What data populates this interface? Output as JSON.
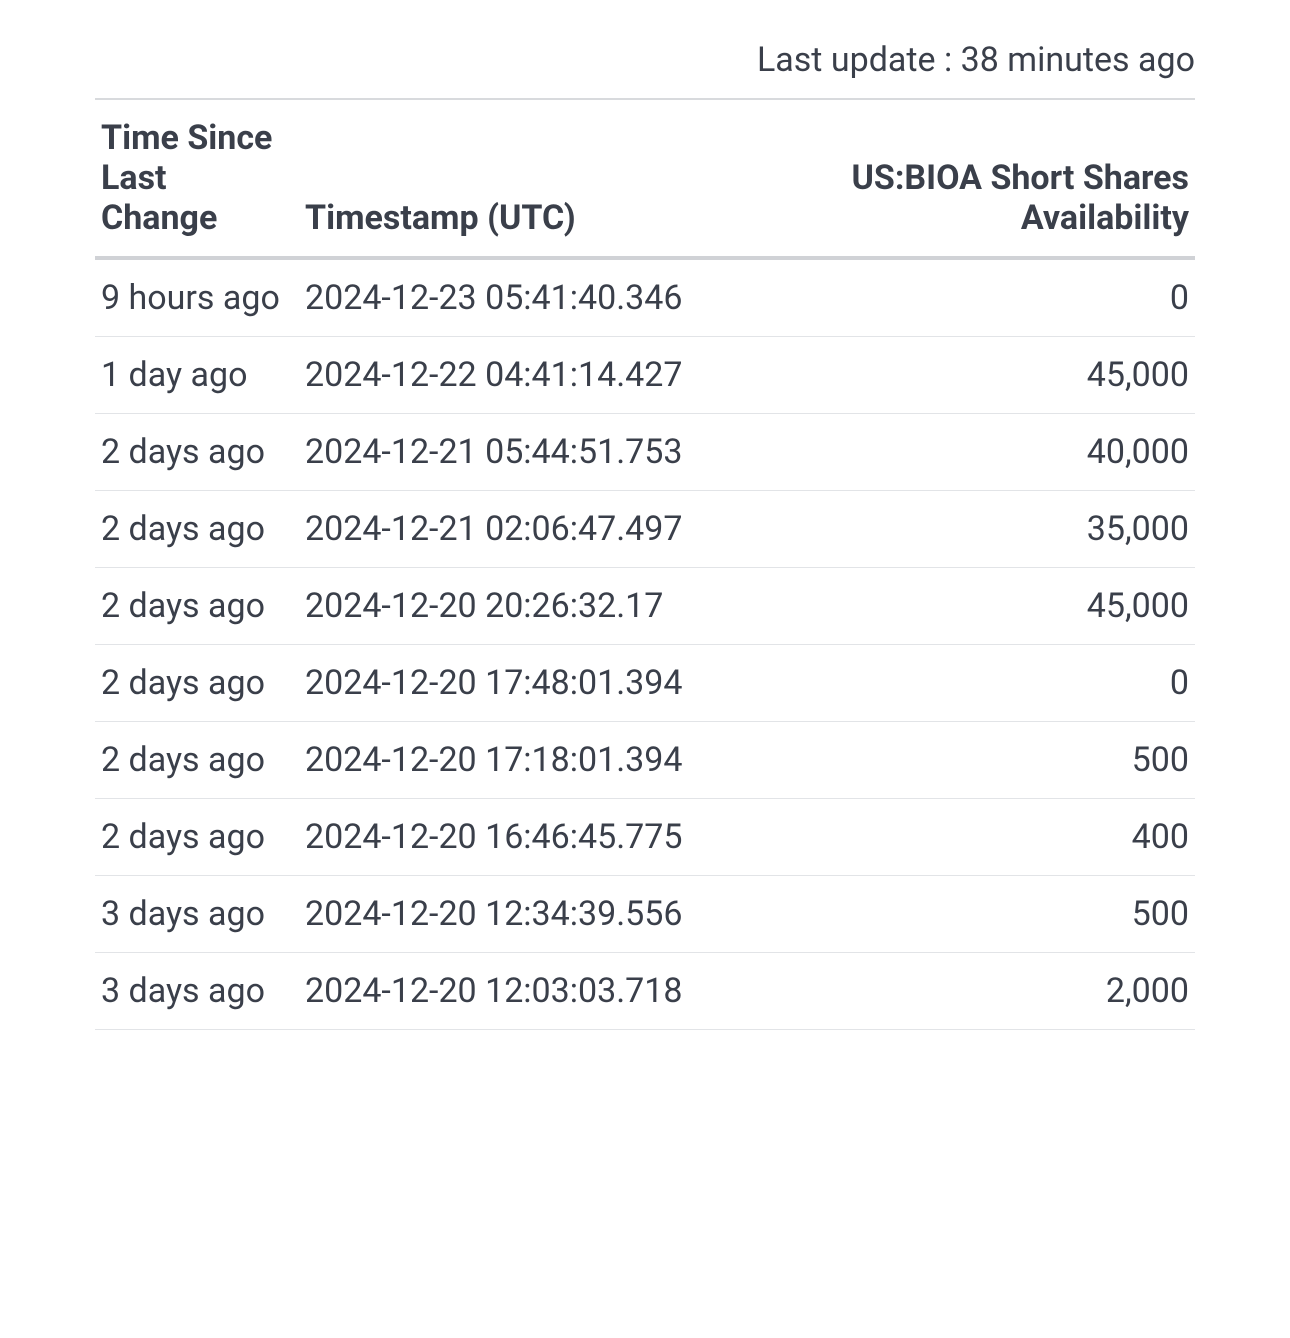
{
  "header": {
    "last_update_text": "Last update : 38 minutes ago"
  },
  "table": {
    "columns": [
      "Time Since Last Change",
      "Timestamp (UTC)",
      "US:BIOA Short Shares Availability"
    ],
    "column_align": [
      "left",
      "left",
      "right"
    ],
    "rows": [
      {
        "since": "9 hours ago",
        "timestamp": "2024-12-23 05:41:40.346",
        "shares": "0"
      },
      {
        "since": "1 day ago",
        "timestamp": "2024-12-22 04:41:14.427",
        "shares": "45,000"
      },
      {
        "since": "2 days ago",
        "timestamp": "2024-12-21 05:44:51.753",
        "shares": "40,000"
      },
      {
        "since": "2 days ago",
        "timestamp": "2024-12-21 02:06:47.497",
        "shares": "35,000"
      },
      {
        "since": "2 days ago",
        "timestamp": "2024-12-20 20:26:32.17",
        "shares": "45,000"
      },
      {
        "since": "2 days ago",
        "timestamp": "2024-12-20 17:48:01.394",
        "shares": "0"
      },
      {
        "since": "2 days ago",
        "timestamp": "2024-12-20 17:18:01.394",
        "shares": "500"
      },
      {
        "since": "2 days ago",
        "timestamp": "2024-12-20 16:46:45.775",
        "shares": "400"
      },
      {
        "since": "3 days ago",
        "timestamp": "2024-12-20 12:34:39.556",
        "shares": "500"
      },
      {
        "since": "3 days ago",
        "timestamp": "2024-12-20 12:03:03.718",
        "shares": "2,000"
      }
    ]
  },
  "style": {
    "background_color": "#ffffff",
    "text_color": "#3a3f4a",
    "header_border_color": "#d0d2d6",
    "row_border_color": "#e2e4e7",
    "font_size_body": 34,
    "font_size_header": 34,
    "font_weight_header": 700,
    "font_weight_body": 400
  }
}
